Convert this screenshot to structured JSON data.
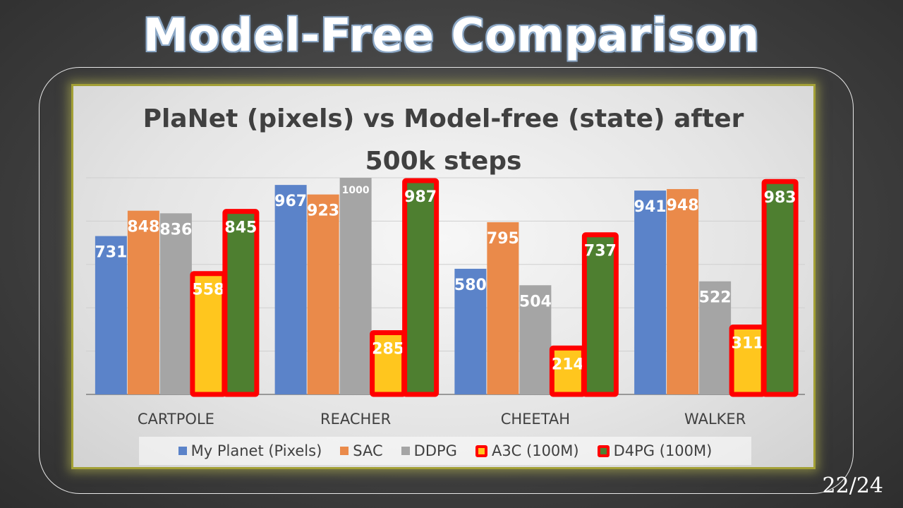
{
  "slide": {
    "title": "Model-Free Comparison",
    "page_number": "22/24"
  },
  "chart_data": {
    "type": "bar",
    "title_line1": "PlaNet (pixels) vs Model-free (state) after",
    "title_line2": "500k steps",
    "categories": [
      "CARTPOLE",
      "REACHER",
      "CHEETAH",
      "WALKER"
    ],
    "series": [
      {
        "name": "My Planet (Pixels)",
        "color": "#5b83c9",
        "highlighted": false,
        "values": [
          731,
          967,
          580,
          941
        ]
      },
      {
        "name": "SAC",
        "color": "#ea8a4a",
        "highlighted": false,
        "values": [
          848,
          923,
          795,
          948
        ]
      },
      {
        "name": "DDPG",
        "color": "#a5a5a5",
        "highlighted": false,
        "values": [
          836,
          1000,
          504,
          522
        ]
      },
      {
        "name": "A3C (100M)",
        "color": "#ffc61e",
        "highlighted": true,
        "values": [
          558,
          285,
          214,
          311
        ]
      },
      {
        "name": "D4PG (100M)",
        "color": "#4e7f30",
        "highlighted": true,
        "values": [
          845,
          987,
          737,
          983
        ]
      }
    ],
    "highlight_color": "#ff0000",
    "ylim": [
      0,
      1000
    ],
    "gridlines": true,
    "y_tick_labels_shown": false,
    "legend_position": "bottom"
  }
}
